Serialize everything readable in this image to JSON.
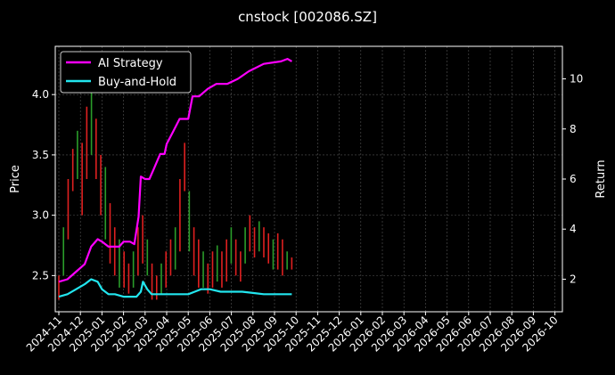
{
  "chart_data": {
    "type": "line",
    "title": "cnstock [002086.SZ]",
    "ylabel": "Price",
    "y2label": "Return",
    "ylim": [
      2.2,
      4.4
    ],
    "y2lim": [
      0.7,
      11.3
    ],
    "yticks": [
      "2.5",
      "3.0",
      "3.5",
      "4.0"
    ],
    "y2ticks": [
      "2",
      "4",
      "6",
      "8",
      "10"
    ],
    "xticks": [
      "2024-11",
      "2024-12",
      "2025-01",
      "2025-02",
      "2025-03",
      "2025-04",
      "2025-05",
      "2025-06",
      "2025-07",
      "2025-08",
      "2025-09",
      "2025-10",
      "2025-11",
      "2025-12",
      "2026-01",
      "2026-02",
      "2026-03",
      "2026-04",
      "2026-05",
      "2026-06",
      "2026-07",
      "2026-08",
      "2026-09",
      "2026-10"
    ],
    "grid": true,
    "legend_position": "top-left",
    "colors": {
      "up": "#2a9d2a",
      "down": "#e02020",
      "strategy": "#ff00ff",
      "hold": "#22e5ee"
    },
    "price_candles": [
      [
        2.5,
        2.3
      ],
      [
        2.9,
        2.5
      ],
      [
        3.3,
        2.8
      ],
      [
        3.55,
        3.2
      ],
      [
        3.7,
        3.3
      ],
      [
        3.6,
        3.0
      ],
      [
        3.9,
        3.3
      ],
      [
        4.1,
        3.5
      ],
      [
        3.8,
        3.3
      ],
      [
        3.5,
        3.0
      ],
      [
        3.4,
        2.8
      ],
      [
        3.1,
        2.6
      ],
      [
        2.9,
        2.5
      ],
      [
        2.8,
        2.4
      ],
      [
        2.7,
        2.4
      ],
      [
        2.6,
        2.35
      ],
      [
        2.7,
        2.4
      ],
      [
        2.9,
        2.5
      ],
      [
        3.0,
        2.6
      ],
      [
        2.8,
        2.5
      ],
      [
        2.6,
        2.3
      ],
      [
        2.5,
        2.3
      ],
      [
        2.6,
        2.35
      ],
      [
        2.7,
        2.4
      ],
      [
        2.8,
        2.5
      ],
      [
        2.9,
        2.55
      ],
      [
        3.3,
        2.7
      ],
      [
        3.6,
        3.2
      ],
      [
        3.2,
        2.7
      ],
      [
        2.9,
        2.5
      ],
      [
        2.8,
        2.4
      ],
      [
        2.7,
        2.4
      ],
      [
        2.6,
        2.35
      ],
      [
        2.7,
        2.4
      ],
      [
        2.75,
        2.45
      ],
      [
        2.7,
        2.4
      ],
      [
        2.8,
        2.45
      ],
      [
        2.9,
        2.6
      ],
      [
        2.8,
        2.5
      ],
      [
        2.7,
        2.45
      ],
      [
        2.9,
        2.6
      ],
      [
        3.0,
        2.7
      ],
      [
        2.9,
        2.65
      ],
      [
        2.95,
        2.7
      ],
      [
        2.9,
        2.65
      ],
      [
        2.85,
        2.6
      ],
      [
        2.8,
        2.55
      ],
      [
        2.85,
        2.55
      ],
      [
        2.8,
        2.5
      ],
      [
        2.7,
        2.55
      ],
      [
        2.65,
        2.55
      ]
    ],
    "strategy_return": [
      [
        0,
        1.9
      ],
      [
        0.4,
        2.0
      ],
      [
        0.8,
        2.3
      ],
      [
        1.2,
        2.6
      ],
      [
        1.5,
        3.3
      ],
      [
        1.8,
        3.6
      ],
      [
        2.0,
        3.5
      ],
      [
        2.3,
        3.3
      ],
      [
        2.6,
        3.3
      ],
      [
        2.8,
        3.3
      ],
      [
        3.0,
        3.5
      ],
      [
        3.3,
        3.5
      ],
      [
        3.5,
        3.4
      ],
      [
        3.7,
        4.5
      ],
      [
        3.8,
        6.1
      ],
      [
        4.0,
        6.0
      ],
      [
        4.2,
        6.0
      ],
      [
        4.4,
        6.4
      ],
      [
        4.7,
        7.0
      ],
      [
        4.9,
        7.0
      ],
      [
        5.0,
        7.4
      ],
      [
        5.3,
        7.9
      ],
      [
        5.6,
        8.4
      ],
      [
        6.0,
        8.4
      ],
      [
        6.2,
        9.3
      ],
      [
        6.5,
        9.3
      ],
      [
        6.9,
        9.6
      ],
      [
        7.3,
        9.8
      ],
      [
        7.8,
        9.8
      ],
      [
        8.3,
        10.0
      ],
      [
        8.8,
        10.3
      ],
      [
        9.5,
        10.6
      ],
      [
        10.3,
        10.7
      ],
      [
        10.6,
        10.8
      ],
      [
        10.8,
        10.7
      ]
    ],
    "hold_return": [
      [
        0,
        1.3
      ],
      [
        0.4,
        1.4
      ],
      [
        0.8,
        1.6
      ],
      [
        1.2,
        1.8
      ],
      [
        1.5,
        2.0
      ],
      [
        1.8,
        1.9
      ],
      [
        2.0,
        1.6
      ],
      [
        2.3,
        1.4
      ],
      [
        2.6,
        1.4
      ],
      [
        3.0,
        1.3
      ],
      [
        3.3,
        1.3
      ],
      [
        3.6,
        1.3
      ],
      [
        3.8,
        1.5
      ],
      [
        3.9,
        1.9
      ],
      [
        4.1,
        1.6
      ],
      [
        4.3,
        1.4
      ],
      [
        4.6,
        1.4
      ],
      [
        5.0,
        1.4
      ],
      [
        5.5,
        1.4
      ],
      [
        6.0,
        1.4
      ],
      [
        6.3,
        1.5
      ],
      [
        6.6,
        1.6
      ],
      [
        7.0,
        1.6
      ],
      [
        7.5,
        1.5
      ],
      [
        8.0,
        1.5
      ],
      [
        8.5,
        1.5
      ],
      [
        9.0,
        1.45
      ],
      [
        9.5,
        1.4
      ],
      [
        10.0,
        1.4
      ],
      [
        10.5,
        1.4
      ],
      [
        10.8,
        1.4
      ]
    ],
    "series": [
      {
        "name": "AI Strategy",
        "axis": "right",
        "values": "strategy_return"
      },
      {
        "name": "Buy-and-Hold",
        "axis": "right",
        "values": "hold_return"
      }
    ]
  }
}
